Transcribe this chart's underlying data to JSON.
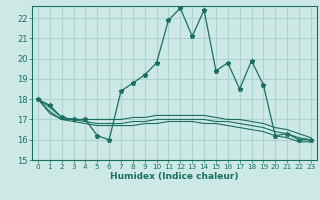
{
  "title": "",
  "xlabel": "Humidex (Indice chaleur)",
  "bg_color": "#cce9e5",
  "grid_color": "#add4ce",
  "line_color": "#1a6e62",
  "xlim": [
    -0.5,
    23.5
  ],
  "ylim": [
    15,
    22.6
  ],
  "yticks": [
    15,
    16,
    17,
    18,
    19,
    20,
    21,
    22
  ],
  "xticks": [
    0,
    1,
    2,
    3,
    4,
    5,
    6,
    7,
    8,
    9,
    10,
    11,
    12,
    13,
    14,
    15,
    16,
    17,
    18,
    19,
    20,
    21,
    22,
    23
  ],
  "main_series": [
    18.0,
    17.7,
    17.1,
    17.0,
    17.0,
    16.2,
    16.0,
    18.4,
    18.8,
    19.2,
    19.8,
    21.9,
    22.5,
    21.1,
    22.4,
    19.4,
    19.8,
    18.5,
    19.9,
    18.7,
    16.2,
    16.3,
    16.0,
    16.0
  ],
  "line2": [
    18.0,
    17.6,
    17.1,
    17.0,
    17.0,
    17.0,
    17.0,
    17.0,
    17.1,
    17.1,
    17.2,
    17.2,
    17.2,
    17.2,
    17.2,
    17.1,
    17.0,
    17.0,
    16.9,
    16.8,
    16.6,
    16.5,
    16.3,
    16.1
  ],
  "line3": [
    18.0,
    17.4,
    17.0,
    17.0,
    16.9,
    16.8,
    16.8,
    16.8,
    16.9,
    16.9,
    17.0,
    17.0,
    17.0,
    17.0,
    17.0,
    16.9,
    16.9,
    16.8,
    16.7,
    16.6,
    16.4,
    16.3,
    16.1,
    16.0
  ],
  "line4": [
    18.0,
    17.3,
    17.0,
    16.9,
    16.8,
    16.7,
    16.7,
    16.7,
    16.7,
    16.8,
    16.8,
    16.9,
    16.9,
    16.9,
    16.8,
    16.8,
    16.7,
    16.6,
    16.5,
    16.4,
    16.2,
    16.1,
    15.9,
    15.9
  ]
}
